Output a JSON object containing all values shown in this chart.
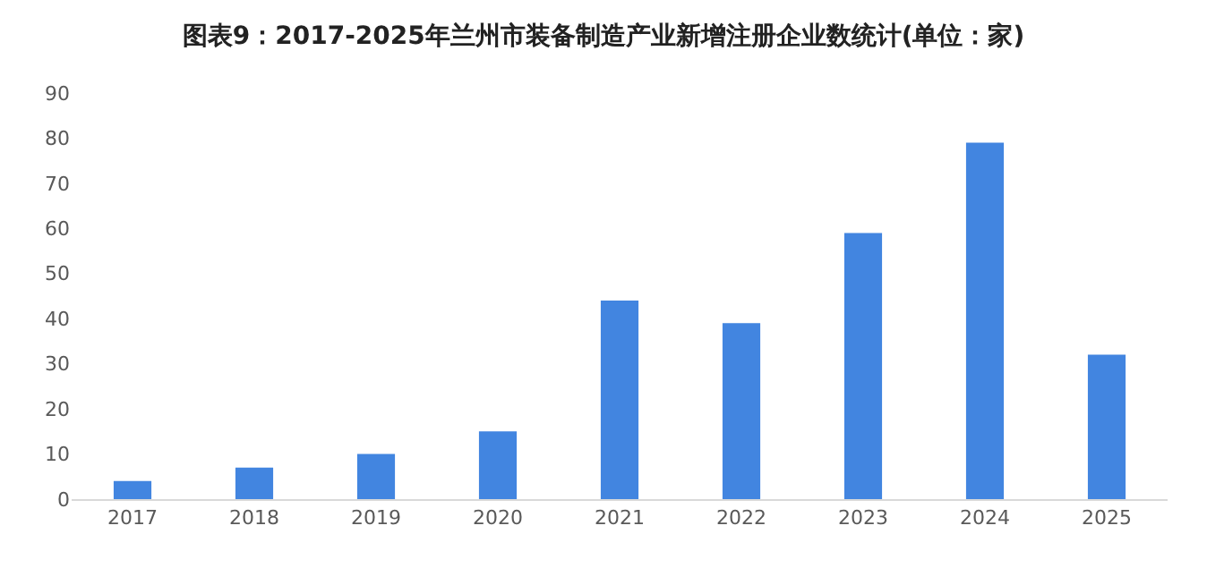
{
  "chart_data": {
    "type": "bar",
    "title": "图表9：2017-2025年兰州市装备制造产业新增注册企业数统计(单位：家)",
    "categories": [
      "2017",
      "2018",
      "2019",
      "2020",
      "2021",
      "2022",
      "2023",
      "2024",
      "2025"
    ],
    "values": [
      4,
      7,
      10,
      15,
      44,
      39,
      59,
      79,
      32
    ],
    "color": "#4285e0",
    "ylim": [
      0,
      90
    ],
    "yticks": [
      0,
      10,
      20,
      30,
      40,
      50,
      60,
      70,
      80,
      90
    ],
    "grid": false,
    "legend": false
  }
}
